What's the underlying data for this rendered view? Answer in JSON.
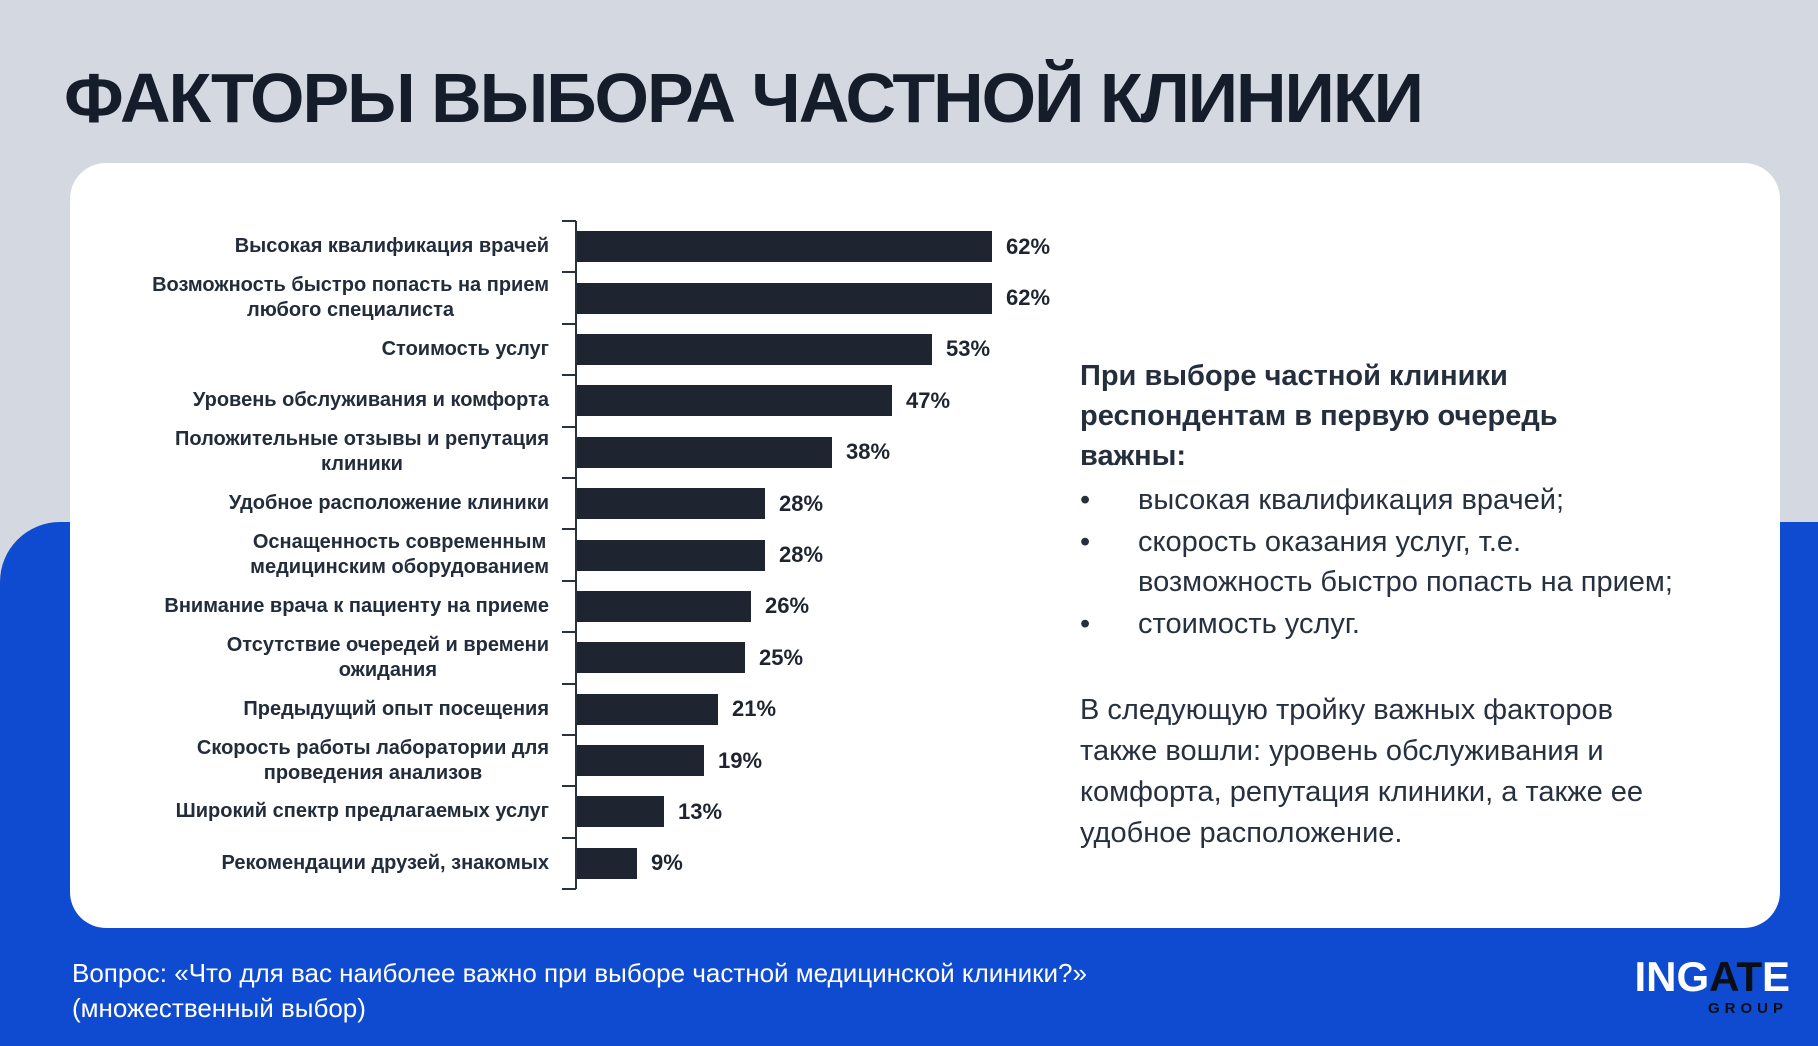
{
  "title": "ФАКТОРЫ ВЫБОРА ЧАСТНОЙ КЛИНИКИ",
  "chart_data": {
    "type": "bar",
    "orientation": "horizontal",
    "title": "ФАКТОРЫ ВЫБОРА ЧАСТНОЙ КЛИНИКИ",
    "unit": "%",
    "xlim": [
      0,
      70
    ],
    "grid": false,
    "legend": false,
    "categories": [
      "Высокая квалификация врачей",
      "Возможность быстро попасть на прием\nлюбого специалиста",
      "Стоимость услуг",
      "Уровень обслуживания и комфорта",
      "Положительные отзывы и репутация\nклиники",
      "Удобное расположение клиники",
      "Оснащенность современным\nмедицинским оборудованием",
      "Внимание врача к пациенту на приеме",
      "Отсутствие очередей и времени\nожидания",
      "Предыдущий опыт посещения",
      "Скорость работы лаборатории для\nпроведения анализов",
      "Широкий спектр предлагаемых услуг",
      "Рекомендации друзей, знакомых"
    ],
    "values": [
      62,
      62,
      53,
      47,
      38,
      28,
      28,
      26,
      25,
      21,
      19,
      13,
      9
    ],
    "value_labels": [
      "62%",
      "62%",
      "53%",
      "47%",
      "38%",
      "28%",
      "28%",
      "26%",
      "25%",
      "21%",
      "19%",
      "13%",
      "9%"
    ],
    "bar_color": "#1E2530",
    "axis_color": "#2A3240"
  },
  "insight": {
    "heading": "При выборе частной клиники\nреспондентам в первую очередь\nважны:",
    "bullet_char": "•",
    "bullets": [
      "высокая квалификация врачей;",
      "скорость оказания услуг, т.е.\nвозможность быстро попасть на прием;",
      "стоимость услуг."
    ],
    "paragraph": "В следующую тройку важных факторов\nтакже вошли: уровень обслуживания и\nкомфорта, репутация клиники, а также ее\nудобное расположение."
  },
  "footer": {
    "question_line1": "Вопрос: «Что для вас наиболее важно при выборе частной медицинской клиники?»",
    "question_line2": "(множественный выбор)",
    "logo": {
      "part1": "ING",
      "part2": "AT",
      "part3": "E",
      "sub": "GROUP"
    }
  },
  "colors": {
    "background_top": "#D4D8E1",
    "background_bottom": "#0F4BD1",
    "card": "#FFFFFF",
    "bar": "#1E2530",
    "title_text": "#161D2A",
    "body_text": "#27303F",
    "footer_text": "#FFFFFF"
  }
}
